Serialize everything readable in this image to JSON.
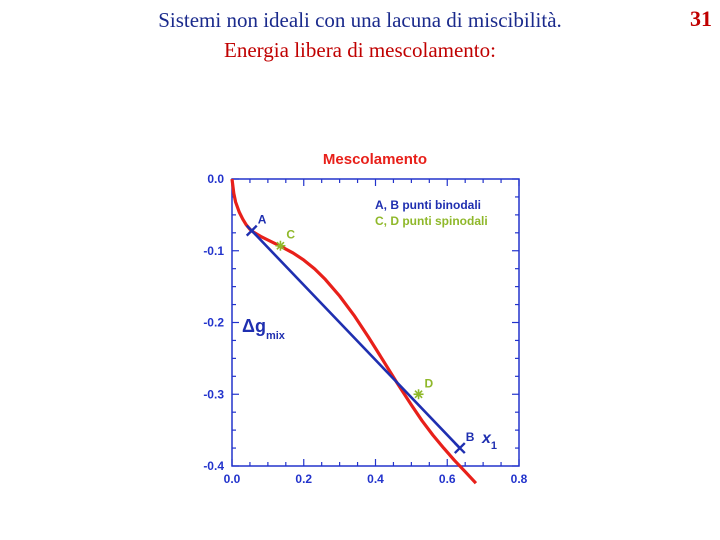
{
  "slide": {
    "title_line1": "Sistemi non ideali con una lacuna di miscibilità.",
    "title_line2": "Energia libera di mescolamento:",
    "page_number": "31"
  },
  "chart_data": {
    "type": "line",
    "title": "Mescolamento",
    "xlim": [
      0.0,
      0.8
    ],
    "ylim": [
      -0.4,
      0.0
    ],
    "x_ticks": [
      "0.0",
      "0.2",
      "0.4",
      "0.6",
      "0.8"
    ],
    "y_ticks": [
      "0.0",
      "-0.1",
      "-0.2",
      "-0.3",
      "-0.4"
    ],
    "xlabel": "x1",
    "ylabel": "Δg mix",
    "legend": {
      "placement": "top-right",
      "binodal_text": "A, B punti binodali",
      "spinodal_text": "C, D punti spinodali"
    },
    "colors": {
      "curve": "#e8201a",
      "tangent": "#1f2fb0",
      "binodal": "#1f2fb0",
      "spinodal": "#8fb82a",
      "axis": "#2233cc",
      "title": "#e8201a"
    },
    "curve": {
      "x": [
        0.0,
        0.005,
        0.01,
        0.02,
        0.03,
        0.04,
        0.05,
        0.06,
        0.08,
        0.1,
        0.12,
        0.14,
        0.17,
        0.2,
        0.23,
        0.26,
        0.3,
        0.34,
        0.38,
        0.42,
        0.46,
        0.5,
        0.53,
        0.56,
        0.59,
        0.62,
        0.65,
        0.68
      ],
      "y": [
        0.0,
        -0.02,
        -0.032,
        -0.046,
        -0.056,
        -0.064,
        -0.07,
        -0.074,
        -0.08,
        -0.085,
        -0.09,
        -0.095,
        -0.103,
        -0.113,
        -0.125,
        -0.14,
        -0.163,
        -0.19,
        -0.22,
        -0.252,
        -0.284,
        -0.315,
        -0.337,
        -0.357,
        -0.375,
        -0.392,
        -0.408,
        -0.424
      ]
    },
    "tangent": {
      "x": [
        0.055,
        0.635
      ],
      "y": [
        -0.072,
        -0.375
      ]
    },
    "points": [
      {
        "label": "A",
        "x": 0.055,
        "y": -0.072,
        "kind": "binodal"
      },
      {
        "label": "B",
        "x": 0.635,
        "y": -0.375,
        "kind": "binodal"
      },
      {
        "label": "C",
        "x": 0.135,
        "y": -0.093,
        "kind": "spinodal"
      },
      {
        "label": "D",
        "x": 0.52,
        "y": -0.3,
        "kind": "spinodal"
      }
    ]
  }
}
